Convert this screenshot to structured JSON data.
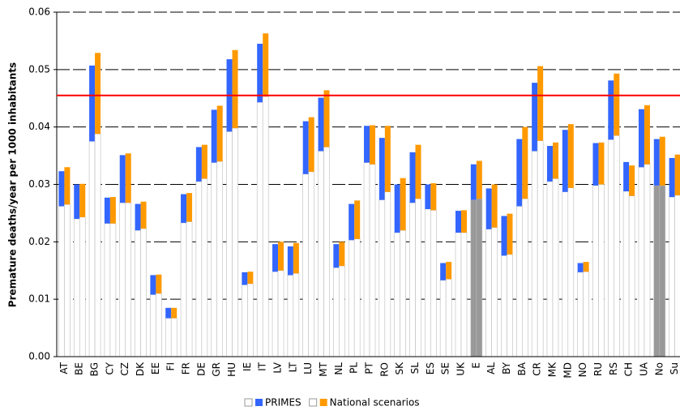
{
  "chart_data": {
    "type": "range_bar",
    "y_label": "Premature deaths/year per 1000 inhabitants",
    "categories": [
      "AT",
      "BE",
      "BG",
      "CY",
      "CZ",
      "DK",
      "EE",
      "FI",
      "FR",
      "DE",
      "GR",
      "HU",
      "IE",
      "IT",
      "LV",
      "LT",
      "LU",
      "MT",
      "NL",
      "PL",
      "PT",
      "RO",
      "SK",
      "SL",
      "ES",
      "SE",
      "UK",
      "E",
      "AL",
      "BY",
      "BA",
      "CR",
      "MK",
      "MD",
      "NO",
      "RU",
      "RS",
      "CH",
      "UA",
      "No",
      "Su"
    ],
    "aggregate": [
      false,
      false,
      false,
      false,
      false,
      false,
      false,
      false,
      false,
      false,
      false,
      false,
      false,
      false,
      false,
      false,
      false,
      false,
      false,
      false,
      false,
      false,
      false,
      false,
      false,
      false,
      false,
      true,
      false,
      false,
      false,
      false,
      false,
      false,
      false,
      false,
      false,
      false,
      false,
      true,
      false
    ],
    "base_color": "#ffffff",
    "aggregate_base_color": "#999999",
    "series": [
      {
        "name": "PRIMES",
        "color": "#3366ff",
        "base": [
          0.0262,
          0.024,
          0.0375,
          0.0232,
          0.0268,
          0.022,
          0.0108,
          0.0067,
          0.0233,
          0.0305,
          0.0338,
          0.0392,
          0.0125,
          0.0443,
          0.0148,
          0.0142,
          0.0318,
          0.0358,
          0.0155,
          0.0203,
          0.0338,
          0.0273,
          0.0216,
          0.0268,
          0.0257,
          0.0133,
          0.0216,
          0.0273,
          0.0222,
          0.0176,
          0.0262,
          0.0358,
          0.0305,
          0.0287,
          0.0147,
          0.0298,
          0.0378,
          0.0288,
          0.033,
          0.0298,
          0.0278
        ],
        "values": [
          0.0061,
          0.006,
          0.0132,
          0.0045,
          0.0083,
          0.0046,
          0.0034,
          0.0018,
          0.005,
          0.006,
          0.0092,
          0.0126,
          0.0022,
          0.0102,
          0.0048,
          0.005,
          0.0092,
          0.0093,
          0.0041,
          0.0063,
          0.0064,
          0.0108,
          0.0084,
          0.0088,
          0.0043,
          0.003,
          0.0038,
          0.0062,
          0.0071,
          0.0069,
          0.0117,
          0.0119,
          0.0062,
          0.0108,
          0.0016,
          0.0074,
          0.0103,
          0.0051,
          0.0101,
          0.0081,
          0.0068
        ]
      },
      {
        "name": "National scenarios",
        "color": "#ff9900",
        "base": [
          0.0265,
          0.0243,
          0.0388,
          0.0232,
          0.0268,
          0.0223,
          0.011,
          0.0067,
          0.0235,
          0.031,
          0.034,
          0.0398,
          0.0127,
          0.0453,
          0.015,
          0.0145,
          0.0322,
          0.0365,
          0.0158,
          0.0205,
          0.0335,
          0.0287,
          0.022,
          0.0275,
          0.0255,
          0.0135,
          0.0216,
          0.0275,
          0.0225,
          0.0178,
          0.0275,
          0.0376,
          0.031,
          0.0294,
          0.0148,
          0.03,
          0.0385,
          0.028,
          0.0335,
          0.0298,
          0.0281
        ],
        "values": [
          0.0065,
          0.0058,
          0.0141,
          0.0046,
          0.0086,
          0.0047,
          0.0033,
          0.0018,
          0.005,
          0.0059,
          0.0097,
          0.0136,
          0.0021,
          0.011,
          0.005,
          0.0053,
          0.0095,
          0.0099,
          0.0042,
          0.0067,
          0.0068,
          0.0115,
          0.0091,
          0.0094,
          0.0047,
          0.003,
          0.0039,
          0.0066,
          0.0075,
          0.0071,
          0.0125,
          0.013,
          0.0063,
          0.0111,
          0.0017,
          0.0073,
          0.0108,
          0.0053,
          0.0103,
          0.0085,
          0.0071
        ]
      }
    ],
    "reference_line": 0.0455,
    "reference_color": "#ff0000",
    "ylim": [
      0,
      0.06
    ],
    "yticks": [
      {
        "value": 0,
        "label": "0.00"
      },
      0.01,
      0.02,
      0.03,
      0.04,
      0.05,
      0.06
    ],
    "grid": true
  }
}
